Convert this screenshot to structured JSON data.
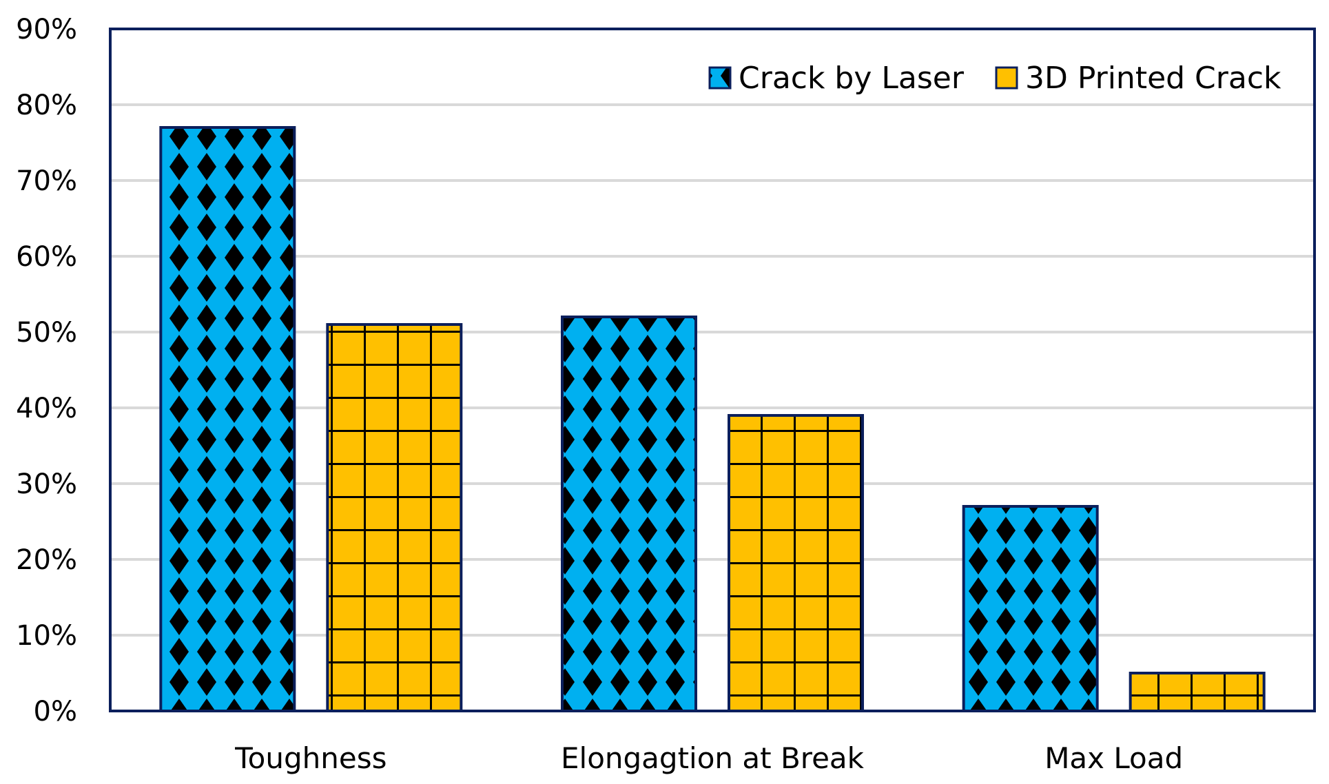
{
  "chart_data": {
    "type": "bar",
    "title": "",
    "xlabel": "",
    "ylabel": "",
    "categories": [
      "Toughness",
      "Elongagtion at Break",
      "Max Load"
    ],
    "series": [
      {
        "name": "Crack by Laser",
        "values": [
          77,
          52,
          27
        ],
        "color": "#00B0F0",
        "pattern": "diamond"
      },
      {
        "name": "3D Printed Crack",
        "values": [
          51,
          39,
          5
        ],
        "color": "#FFC000",
        "pattern": "grid"
      }
    ],
    "ylim": [
      0,
      90
    ],
    "yticks": [
      0,
      10,
      20,
      30,
      40,
      50,
      60,
      70,
      80,
      90
    ],
    "ytick_labels": [
      "0%",
      "10%",
      "20%",
      "30%",
      "40%",
      "50%",
      "60%",
      "70%",
      "80%",
      "90%"
    ],
    "grid": true,
    "legend_position": "top-right",
    "border_color": "#0B1F5C",
    "grid_color": "#D9D9D9"
  }
}
